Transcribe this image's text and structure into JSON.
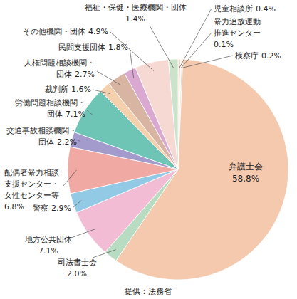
{
  "chart_data": {
    "type": "pie",
    "categories": [
      "児童相談所",
      "暴力追放運動推進センター",
      "検察庁",
      "弁護士会",
      "司法書士会",
      "地方公共団体",
      "警察",
      "配偶者暴力相談支援センター・女性センター等",
      "交通事故相談機関・団体",
      "労働問題相談機関・団体",
      "裁判所",
      "人権問題相談機関・団体",
      "民間支援団体",
      "その他機関・団体",
      "福祉・保健・医療機関・団体"
    ],
    "values": [
      0.4,
      0.1,
      0.2,
      58.8,
      2.0,
      7.1,
      2.9,
      6.8,
      2.2,
      7.1,
      1.6,
      2.7,
      1.8,
      4.9,
      1.4
    ],
    "value_labels": [
      "0.4%",
      "0.1%",
      "0.2%",
      "58.8%",
      "2.0%",
      "7.1%",
      "2.9%",
      "6.8%",
      "2.2%",
      "7.1%",
      "1.6%",
      "2.7%",
      "1.8%",
      "4.9%",
      "1.4%"
    ],
    "colors": [
      "#f3dccb",
      "#dcdcdc",
      "#d6c6b4",
      "#f5c9ae",
      "#b8dcc2",
      "#f2bcd4",
      "#92c9e4",
      "#f1a9a3",
      "#a39bcb",
      "#6fc5b5",
      "#f5d0ad",
      "#d8b5a2",
      "#d9a9d1",
      "#f6d9d2",
      "#cbe2cb"
    ],
    "data_labels": true,
    "source": "提供：法務省"
  }
}
